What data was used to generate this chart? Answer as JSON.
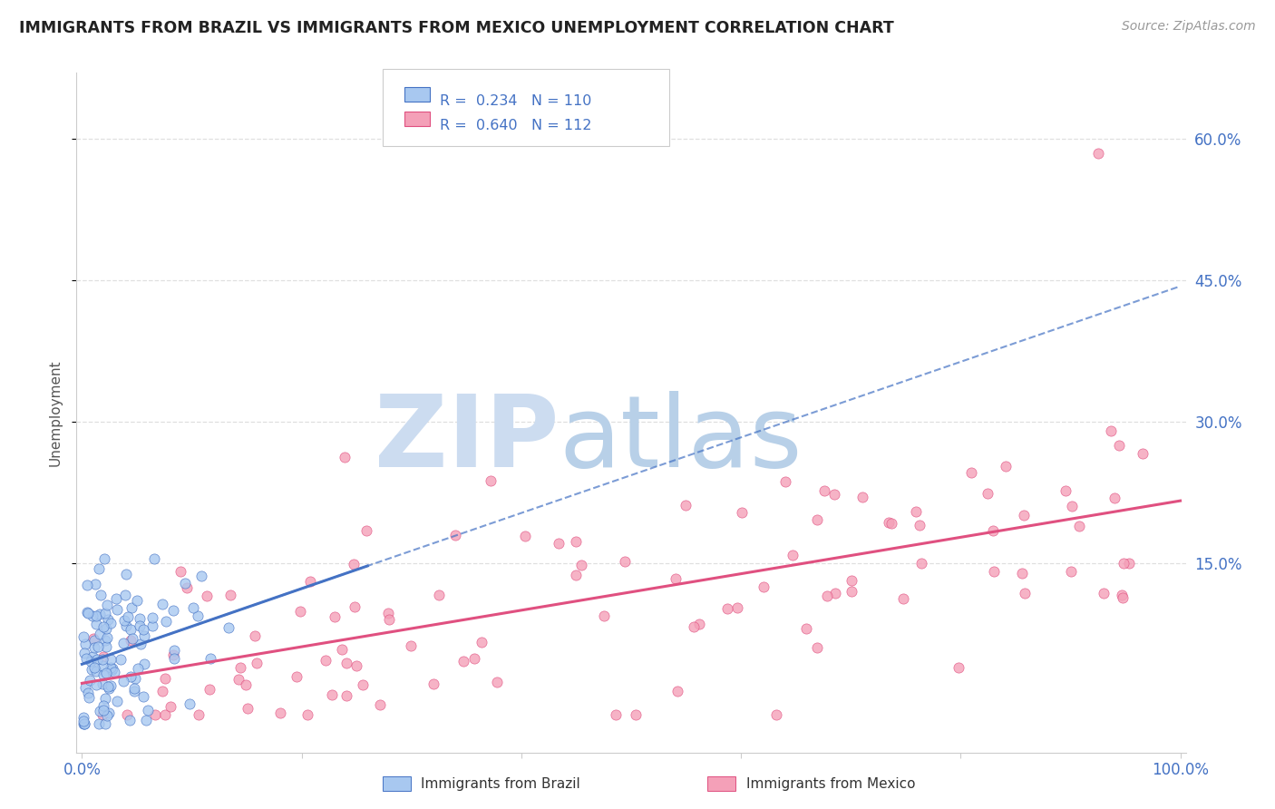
{
  "title": "IMMIGRANTS FROM BRAZIL VS IMMIGRANTS FROM MEXICO UNEMPLOYMENT CORRELATION CHART",
  "source": "Source: ZipAtlas.com",
  "ylabel": "Unemployment",
  "ytick_labels": [
    "60.0%",
    "45.0%",
    "30.0%",
    "15.0%"
  ],
  "ytick_values": [
    0.6,
    0.45,
    0.3,
    0.15
  ],
  "xlim": [
    -0.005,
    1.005
  ],
  "ylim": [
    -0.05,
    0.67
  ],
  "legend_brazil_R": "0.234",
  "legend_brazil_N": "110",
  "legend_mexico_R": "0.640",
  "legend_mexico_N": "112",
  "color_brazil": "#a8c8f0",
  "color_mexico": "#f4a0b8",
  "color_brazil_line": "#4472c4",
  "color_mexico_line": "#e05080",
  "color_legend_text": "#4472c4",
  "color_grid": "#d8d8d8",
  "color_axis": "#cccccc"
}
